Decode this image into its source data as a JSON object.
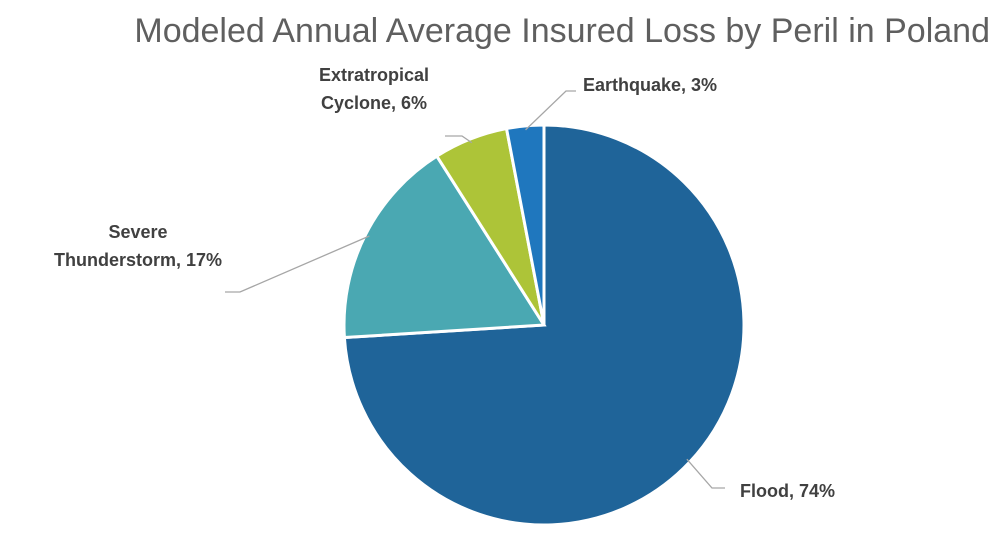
{
  "chart_data": {
    "type": "pie",
    "title": "Modeled Annual Average Insured Loss by Peril in Poland",
    "slices": [
      {
        "label": "Flood, 74%",
        "value": 74,
        "color": "#1f6499"
      },
      {
        "label": "Severe Thunderstorm, 17%",
        "value": 17,
        "color": "#4aa8b2"
      },
      {
        "label": "Extratropical Cyclone, 6%",
        "value": 6,
        "color": "#adc438"
      },
      {
        "label": "Earthquake, 3%",
        "value": 3,
        "color": "#1f77be"
      }
    ],
    "label_lines": [
      [
        "Flood, 74%"
      ],
      [
        "Severe",
        "Thunderstorm, 17%"
      ],
      [
        "Extratropical",
        "Cyclone, 6%"
      ],
      [
        "Earthquake, 3%"
      ]
    ]
  }
}
